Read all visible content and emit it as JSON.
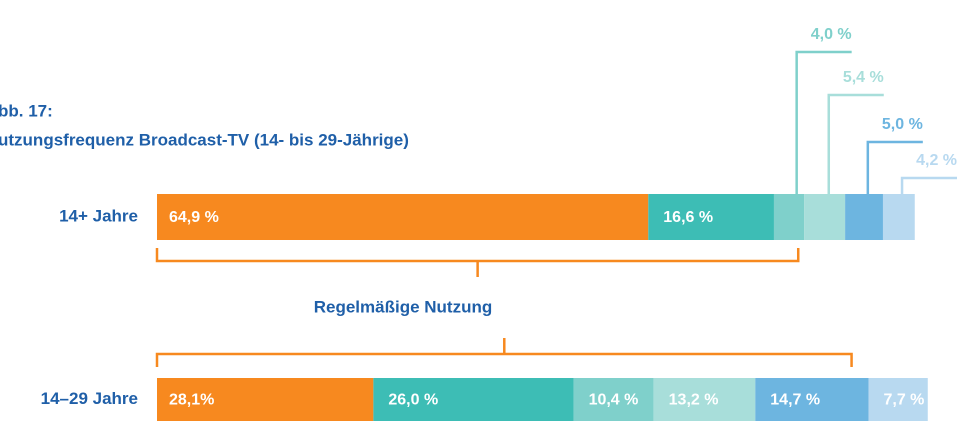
{
  "chart_data": {
    "type": "stacked-bar-horizontal",
    "title": [
      "bb. 17:",
      "utzungsfrequenz Broadcast-TV (14- bis 29-Jährige)"
    ],
    "annotation": "Regelmäßige Nutzung",
    "categories": [
      "14+ Jahre",
      "14–29 Jahre"
    ],
    "series": [
      {
        "color": "#f7891f",
        "values": [
          64.9,
          28.1
        ],
        "value_labels": [
          "64,9 %",
          "28,1%"
        ]
      },
      {
        "color": "#3dbdb5",
        "values": [
          16.6,
          26.0
        ],
        "value_labels": [
          "16,6 %",
          "26,0 %"
        ]
      },
      {
        "color": "#7fd0cb",
        "values": [
          4.0,
          10.4
        ],
        "value_labels": [
          "4,0 %",
          "10,4 %"
        ]
      },
      {
        "color": "#a8deda",
        "values": [
          5.4,
          13.2
        ],
        "value_labels": [
          "5,4 %",
          "13,2 %"
        ]
      },
      {
        "color": "#6db5e0",
        "values": [
          5.0,
          14.7
        ],
        "value_labels": [
          "5,0 %",
          "14,7 %"
        ]
      },
      {
        "color": "#b8d9f0",
        "values": [
          4.2,
          7.7
        ],
        "value_labels": [
          "4,2 %",
          "7,7 %"
        ]
      }
    ]
  }
}
